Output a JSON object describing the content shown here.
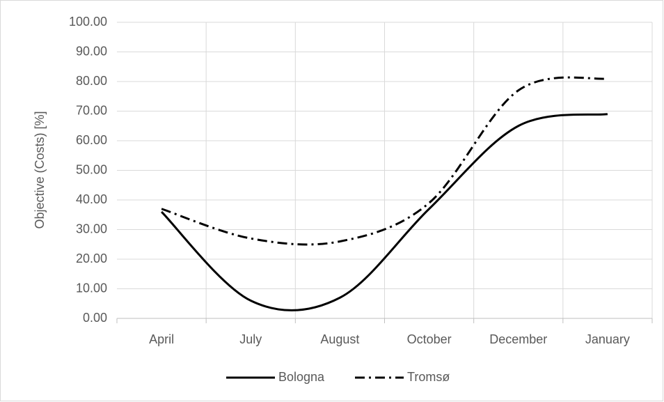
{
  "chart_data": {
    "type": "line",
    "y_label": "Objective (Costs) [%]",
    "categories": [
      "April",
      "July",
      "August",
      "October",
      "December",
      "January"
    ],
    "series": [
      {
        "name": "Bologna",
        "color": "#000000",
        "dash": "solid",
        "values": [
          36,
          6,
          7,
          37,
          65,
          69
        ]
      },
      {
        "name": "Tromsø",
        "color": "#000000",
        "dash": "dash-dot",
        "values": [
          37,
          27,
          26,
          39,
          77,
          81
        ]
      }
    ],
    "ylim": [
      0,
      100
    ],
    "yticks": [
      {
        "value": 0,
        "label": "0.00"
      },
      {
        "value": 10,
        "label": "10.00"
      },
      {
        "value": 20,
        "label": "20.00"
      },
      {
        "value": 30,
        "label": "30.00"
      },
      {
        "value": 40,
        "label": "40.00"
      },
      {
        "value": 50,
        "label": "50.00"
      },
      {
        "value": 60,
        "label": "60.00"
      },
      {
        "value": 70,
        "label": "70.00"
      },
      {
        "value": 80,
        "label": "80.00"
      },
      {
        "value": 90,
        "label": "90.00"
      },
      {
        "value": 100,
        "label": "100.00"
      }
    ],
    "grid": true,
    "smooth": true,
    "legend": "bottom"
  }
}
